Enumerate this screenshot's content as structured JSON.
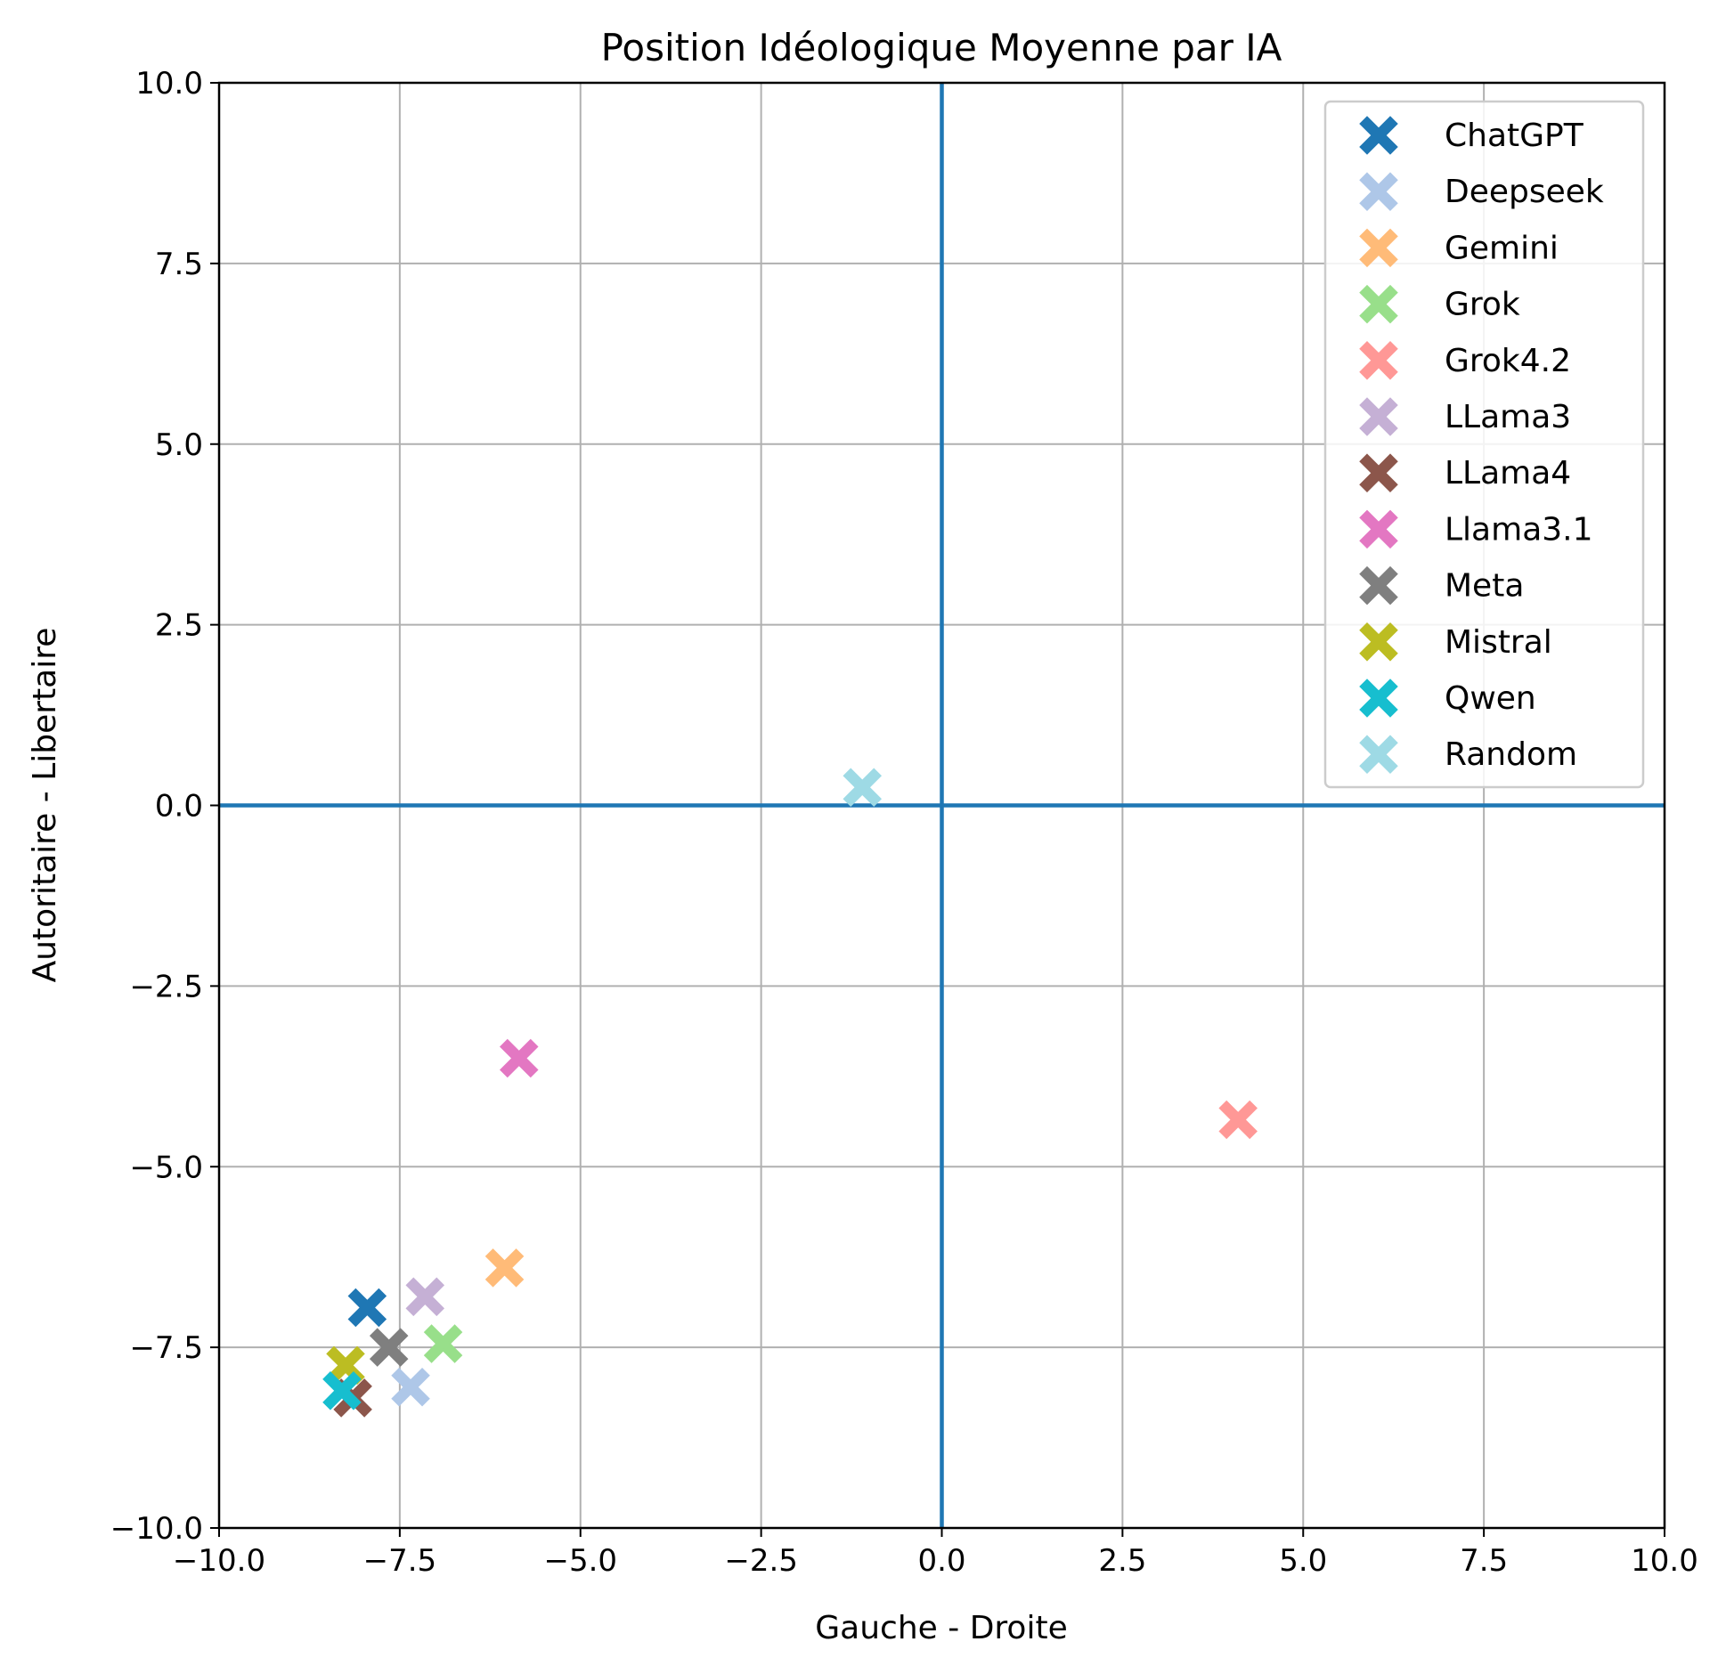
{
  "chart_data": {
    "type": "scatter",
    "title": "Position Idéologique Moyenne par IA",
    "xlabel": "Gauche - Droite",
    "ylabel": "Autoritaire - Libertaire",
    "xlim": [
      -10,
      10
    ],
    "ylim": [
      -10,
      10
    ],
    "xticks": [
      "−10.0",
      "−7.5",
      "−5.0",
      "−2.5",
      "0.0",
      "2.5",
      "5.0",
      "7.5",
      "10.0"
    ],
    "yticks": [
      "−10.0",
      "−7.5",
      "−5.0",
      "−2.5",
      "0.0",
      "2.5",
      "5.0",
      "7.5",
      "10.0"
    ],
    "grid": true,
    "reference_lines": {
      "x": 0,
      "y": 0,
      "color": "#1f77b4"
    },
    "legend_position": "top-right",
    "marker": "X",
    "series": [
      {
        "name": "ChatGPT",
        "color": "#1f77b4",
        "x": -7.95,
        "y": -6.95
      },
      {
        "name": "Deepseek",
        "color": "#aec7e8",
        "x": -7.35,
        "y": -8.05
      },
      {
        "name": "Gemini",
        "color": "#ffbb78",
        "x": -6.05,
        "y": -6.4
      },
      {
        "name": "Grok",
        "color": "#98df8a",
        "x": -6.9,
        "y": -7.45
      },
      {
        "name": "Grok4.2",
        "color": "#ff9896",
        "x": 4.1,
        "y": -4.35
      },
      {
        "name": "LLama3",
        "color": "#c5b0d5",
        "x": -7.15,
        "y": -6.8
      },
      {
        "name": "LLama4",
        "color": "#8c564b",
        "x": -8.15,
        "y": -8.2
      },
      {
        "name": "Llama3.1",
        "color": "#e377c2",
        "x": -5.85,
        "y": -3.5
      },
      {
        "name": "Meta",
        "color": "#7f7f7f",
        "x": -7.65,
        "y": -7.5
      },
      {
        "name": "Mistral",
        "color": "#bcbd22",
        "x": -8.25,
        "y": -7.75
      },
      {
        "name": "Qwen",
        "color": "#17becf",
        "x": -8.3,
        "y": -8.1
      },
      {
        "name": "Random",
        "color": "#9edae5",
        "x": -1.1,
        "y": 0.25
      }
    ]
  }
}
